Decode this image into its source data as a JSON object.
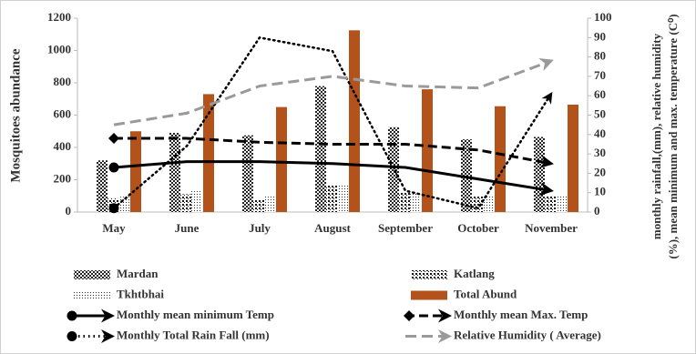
{
  "chart_data": {
    "type": "bar-line",
    "ylabel": "Mosquitoes abundance",
    "y2label": [
      "monthly rainfall,(mm), relative humidity",
      "(%), mean minimum and max. temperature (C⁰)"
    ],
    "categories": [
      "May",
      "June",
      "July",
      "August",
      "September",
      "October",
      "November"
    ],
    "ylim": [
      0,
      1200
    ],
    "yticks": [
      0,
      200,
      400,
      600,
      800,
      1000,
      1200
    ],
    "y2lim": [
      0,
      100
    ],
    "y2ticks": [
      0,
      10,
      20,
      30,
      40,
      50,
      60,
      70,
      80,
      90,
      100
    ],
    "series": [
      {
        "name": "Mardan",
        "kind": "bar",
        "color": "#222222",
        "pattern": "checker",
        "values": [
          320,
          490,
          475,
          780,
          525,
          450,
          465
        ]
      },
      {
        "name": "Katlang",
        "kind": "bar",
        "color": "#111111",
        "pattern": "dots",
        "values": [
          85,
          110,
          75,
          165,
          120,
          100,
          100
        ]
      },
      {
        "name": "Tkhtbhai",
        "kind": "bar",
        "color": "#333333",
        "pattern": "fine-dots",
        "values": [
          95,
          130,
          100,
          165,
          115,
          100,
          100
        ]
      },
      {
        "name": "Total Abund",
        "kind": "bar",
        "color": "#b3521a",
        "pattern": "solid",
        "values": [
          500,
          730,
          650,
          1125,
          760,
          655,
          665
        ]
      },
      {
        "name": "Monthly mean minimum Temp",
        "kind": "line",
        "axis": "y2",
        "color": "#000000",
        "dash": "solid",
        "marker": "circle",
        "values": [
          23,
          26,
          26,
          25,
          23,
          17,
          11
        ]
      },
      {
        "name": "Monthly mean Max. Temp",
        "kind": "line",
        "axis": "y2",
        "color": "#000000",
        "dash": "long-dash",
        "marker": "diamond",
        "values": [
          38,
          38,
          36,
          35,
          35,
          32,
          25
        ]
      },
      {
        "name": "Monthly Total Rain Fall (mm)",
        "kind": "line",
        "axis": "y2",
        "color": "#000000",
        "dash": "dotted",
        "marker": "circle",
        "values": [
          2,
          34,
          90,
          83,
          11,
          2,
          61
        ]
      },
      {
        "name": "Relative Humidity ( Average)",
        "kind": "line",
        "axis": "y2",
        "color": "#9a9a9a",
        "dash": "dash",
        "marker": "none",
        "values": [
          45,
          51,
          65,
          70,
          65,
          64,
          78
        ]
      }
    ]
  }
}
